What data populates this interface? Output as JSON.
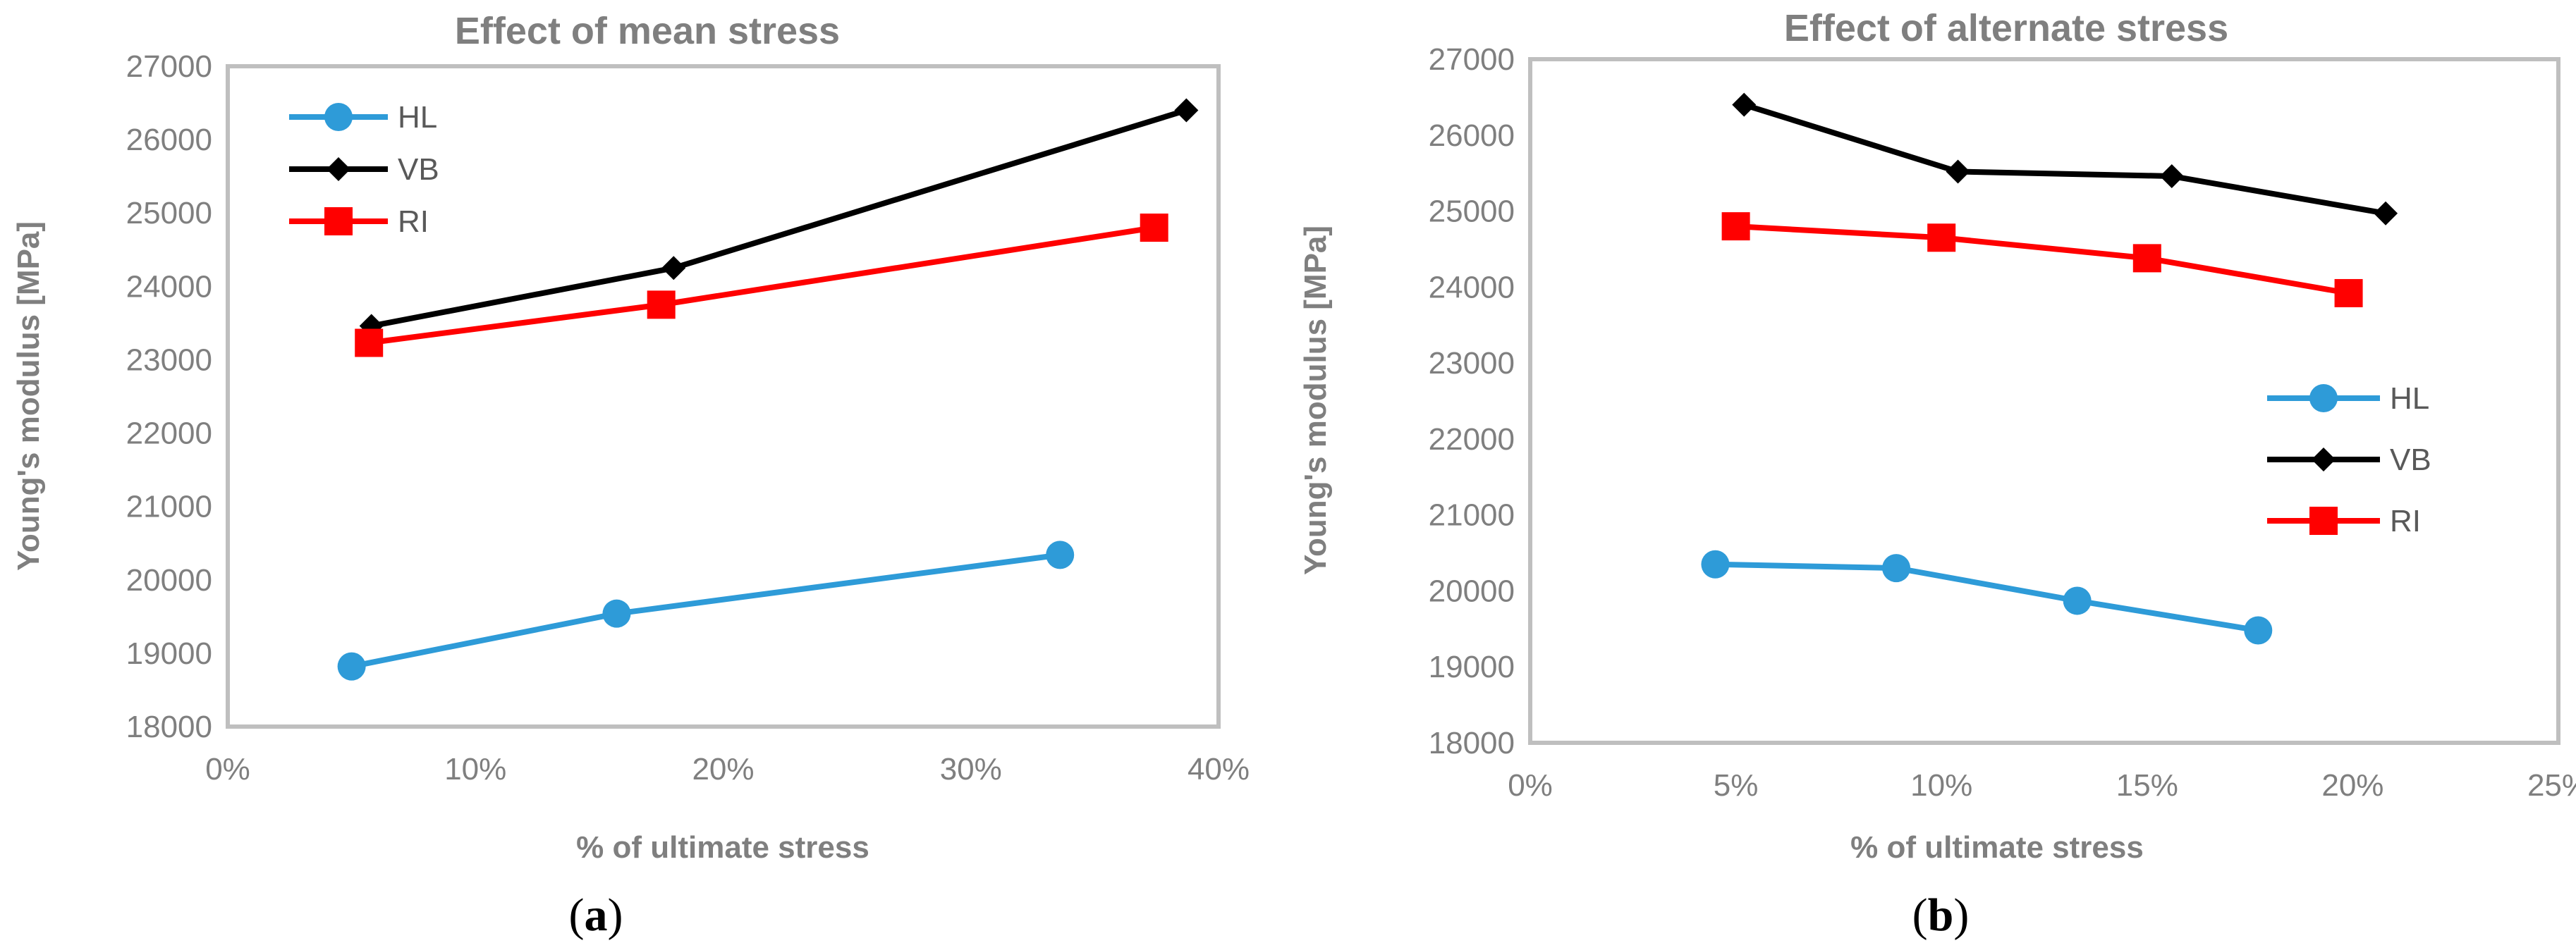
{
  "chart_data": [
    {
      "type": "line",
      "title": "Effect of mean stress",
      "xlabel": "% of ultimate stress",
      "ylabel": "Young's modulus [MPa]",
      "panel_label": "a",
      "xlim": [
        0,
        0.4
      ],
      "ylim": [
        18000,
        27000
      ],
      "x_ticks": [
        "0%",
        "10%",
        "20%",
        "30%",
        "40%"
      ],
      "y_ticks": [
        "18000",
        "19000",
        "20000",
        "21000",
        "22000",
        "23000",
        "24000",
        "25000",
        "26000",
        "27000"
      ],
      "legend_position": "top-left",
      "grid": false,
      "series": [
        {
          "name": "HL",
          "color": "#2e9bd8",
          "marker": "circle",
          "x": [
            0.05,
            0.157,
            0.336
          ],
          "y": [
            18820,
            19540,
            20340
          ]
        },
        {
          "name": "VB",
          "color": "#000000",
          "marker": "diamond",
          "x": [
            0.058,
            0.18,
            0.387
          ],
          "y": [
            23460,
            24250,
            26400
          ]
        },
        {
          "name": "RI",
          "color": "#ff0000",
          "marker": "square",
          "x": [
            0.057,
            0.175,
            0.374
          ],
          "y": [
            23230,
            23750,
            24800
          ]
        }
      ]
    },
    {
      "type": "line",
      "title": "Effect of alternate stress",
      "xlabel": "% of ultimate stress",
      "ylabel": "Young's modulus [MPa]",
      "panel_label": "b",
      "xlim": [
        0,
        0.25
      ],
      "ylim": [
        18000,
        27000
      ],
      "x_ticks": [
        "0%",
        "5%",
        "10%",
        "15%",
        "20%",
        "25%"
      ],
      "y_ticks": [
        "18000",
        "19000",
        "20000",
        "21000",
        "22000",
        "23000",
        "24000",
        "25000",
        "26000",
        "27000"
      ],
      "legend_position": "right",
      "grid": false,
      "series": [
        {
          "name": "HL",
          "color": "#2e9bd8",
          "marker": "circle",
          "x": [
            0.045,
            0.089,
            0.133,
            0.177
          ],
          "y": [
            20350,
            20300,
            19870,
            19480
          ]
        },
        {
          "name": "VB",
          "color": "#000000",
          "marker": "diamond",
          "x": [
            0.052,
            0.104,
            0.156,
            0.208
          ],
          "y": [
            26400,
            25520,
            25460,
            24970
          ]
        },
        {
          "name": "RI",
          "color": "#ff0000",
          "marker": "square",
          "x": [
            0.05,
            0.1,
            0.15,
            0.199
          ],
          "y": [
            24800,
            24650,
            24380,
            23920
          ]
        }
      ]
    }
  ]
}
